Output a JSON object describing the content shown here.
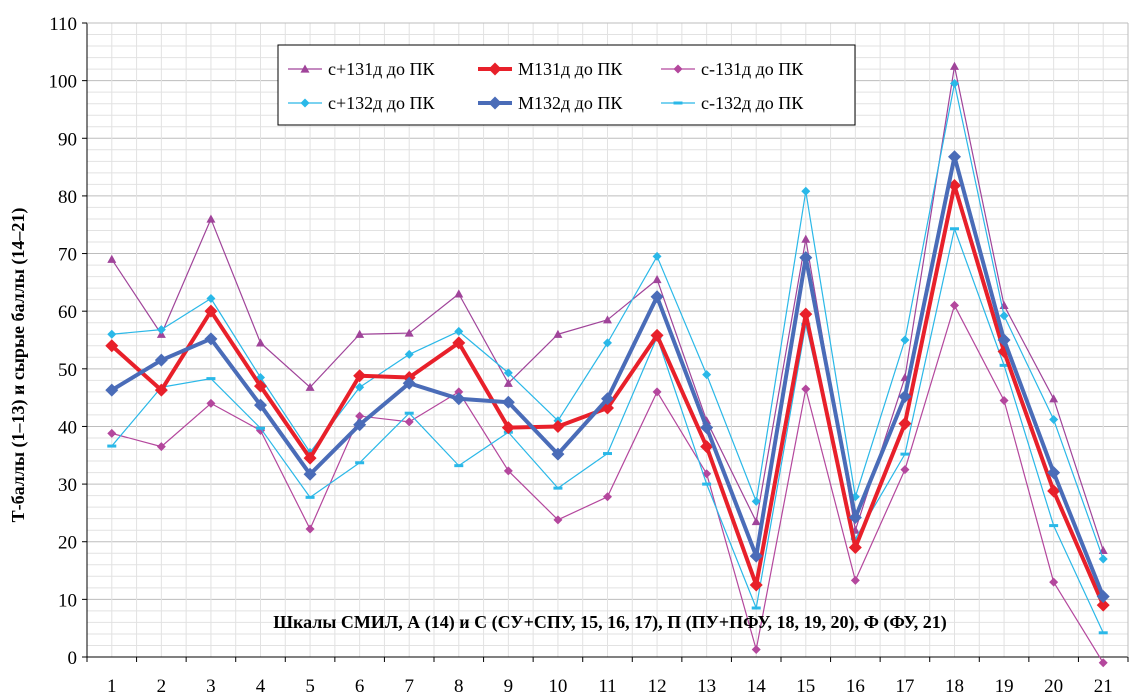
{
  "chart_data": {
    "type": "line",
    "title": "",
    "ylabel": "Т-баллы (1–13) и сырые баллы (14–21)",
    "xlabel": "Шкалы СМИЛ, А (14) и С (СУ+СПУ, 15, 16, 17), П (ПУ+ПФУ, 18, 19, 20), Ф (ФУ, 21)",
    "ylim": [
      0,
      110
    ],
    "yticks": [
      0,
      10,
      20,
      30,
      40,
      50,
      60,
      70,
      80,
      90,
      100,
      110
    ],
    "categories": [
      "1",
      "2",
      "3",
      "4",
      "5",
      "6",
      "7",
      "8",
      "9",
      "10",
      "11",
      "12",
      "13",
      "14",
      "15",
      "16",
      "17",
      "18",
      "19",
      "20",
      "21"
    ],
    "grid": true,
    "legend_position": "top-center",
    "series": [
      {
        "name": "с+131д до ПК",
        "color": "#a0449a",
        "marker": "triangle",
        "width": 1.2,
        "values": [
          69,
          56,
          76,
          54.5,
          46.8,
          56,
          56.2,
          63,
          47.5,
          56,
          58.5,
          65.5,
          41,
          23.5,
          72.5,
          22,
          48.5,
          102.5,
          61,
          44.8,
          18.5
        ]
      },
      {
        "name": "М131д до ПК",
        "color": "#e8202a",
        "marker": "diamond",
        "width": 4,
        "values": [
          54,
          46.3,
          60,
          47,
          34.5,
          48.8,
          48.5,
          54.5,
          39.8,
          40,
          43.2,
          55.8,
          36.5,
          12.5,
          59.5,
          19,
          40.5,
          81.8,
          53,
          28.8,
          9
        ]
      },
      {
        "name": "с-131д до ПК",
        "color": "#b4479d",
        "marker": "diamond",
        "width": 1.2,
        "values": [
          38.8,
          36.5,
          44,
          39.3,
          22.2,
          41.8,
          40.8,
          46,
          32.3,
          23.8,
          27.8,
          46,
          31.8,
          1.3,
          46.5,
          13.3,
          32.5,
          61,
          44.5,
          13,
          -1
        ]
      },
      {
        "name": "с+132д до ПК",
        "color": "#2ab8e8",
        "marker": "diamond",
        "width": 1.2,
        "values": [
          56,
          56.8,
          62.2,
          48.5,
          35.5,
          46.8,
          52.5,
          56.5,
          49.3,
          41,
          54.5,
          69.5,
          49,
          27,
          80.8,
          27.8,
          55,
          99.5,
          59.2,
          41.2,
          17
        ]
      },
      {
        "name": "М132д до ПК",
        "color": "#4a6cb8",
        "marker": "diamond",
        "width": 4,
        "values": [
          46.3,
          51.5,
          55.2,
          43.7,
          31.7,
          40.3,
          47.5,
          44.8,
          44.2,
          35.2,
          44.8,
          62.5,
          39.8,
          17.5,
          69.3,
          24.2,
          45.2,
          86.8,
          55,
          32,
          10.5
        ]
      },
      {
        "name": "с-132д до ПК",
        "color": "#2ab8e8",
        "marker": "dash",
        "width": 1.2,
        "values": [
          36.6,
          46.8,
          48.3,
          39.7,
          27.7,
          33.7,
          42.3,
          33.2,
          39,
          29.3,
          35.3,
          55.5,
          30,
          8.5,
          57.7,
          20.5,
          35.2,
          74.3,
          50.6,
          22.8,
          4.2
        ]
      }
    ]
  }
}
